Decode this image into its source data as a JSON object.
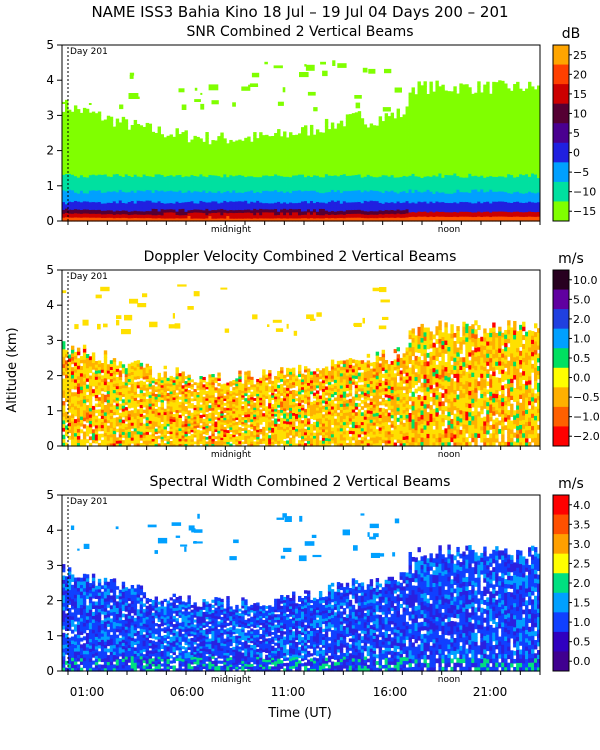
{
  "header": {
    "title": "NAME ISS3 Bahia Kino   18 Jul – 19 Jul 04 Days 200 – 201"
  },
  "chart_data": [
    {
      "type": "heatmap",
      "title": "SNR Combined 2 Vertical Beams",
      "units": "dB",
      "xlabel": "",
      "ylabel": "",
      "ylim": [
        0,
        5
      ],
      "y_ticks": [
        "0",
        "1",
        "2",
        "3",
        "4",
        "5"
      ],
      "colorbar_labels": [
        "25",
        "20",
        "15",
        "10",
        "5",
        "0",
        "−5",
        "−10",
        "−15"
      ],
      "colorbar_colors": [
        "#ffa500",
        "#ff4000",
        "#cc0000",
        "#550033",
        "#4a0090",
        "#2020e0",
        "#00a0ff",
        "#00e0a0",
        "#80ff00"
      ],
      "markers": [
        "Day 201",
        "midnight",
        "noon"
      ]
    },
    {
      "type": "heatmap",
      "title": "Doppler Velocity Combined 2 Vertical Beams",
      "units": "m/s",
      "xlabel": "",
      "ylabel": "Altitude (km)",
      "ylim": [
        0,
        5
      ],
      "y_ticks": [
        "0",
        "1",
        "2",
        "3",
        "4",
        "5"
      ],
      "colorbar_labels": [
        "10.0",
        "5.0",
        "2.0",
        "1.0",
        "0.5",
        "0.0",
        "−0.5",
        "−1.0",
        "−2.0"
      ],
      "colorbar_colors": [
        "#280020",
        "#6000a0",
        "#2040e0",
        "#00a0ff",
        "#00e060",
        "#ffff00",
        "#ffb000",
        "#ff6000",
        "#ff0000"
      ],
      "markers": [
        "Day 201",
        "midnight",
        "noon"
      ]
    },
    {
      "type": "heatmap",
      "title": "Spectral Width Combined 2 Vertical Beams",
      "units": "m/s",
      "xlabel": "Time (UT)",
      "ylabel": "",
      "ylim": [
        0,
        5
      ],
      "y_ticks": [
        "0",
        "1",
        "2",
        "3",
        "4",
        "5"
      ],
      "x_ticks": [
        "01:00",
        "06:00",
        "11:00",
        "16:00",
        "21:00"
      ],
      "colorbar_labels": [
        "4.0",
        "3.5",
        "3.0",
        "2.5",
        "2.0",
        "1.5",
        "1.0",
        "0.5",
        "0.0"
      ],
      "colorbar_colors": [
        "#ff0000",
        "#ff5000",
        "#ffa000",
        "#ffff00",
        "#00e080",
        "#00a0ff",
        "#1040ff",
        "#3000c0",
        "#400090"
      ],
      "markers": [
        "Day 201",
        "midnight",
        "noon"
      ]
    }
  ]
}
